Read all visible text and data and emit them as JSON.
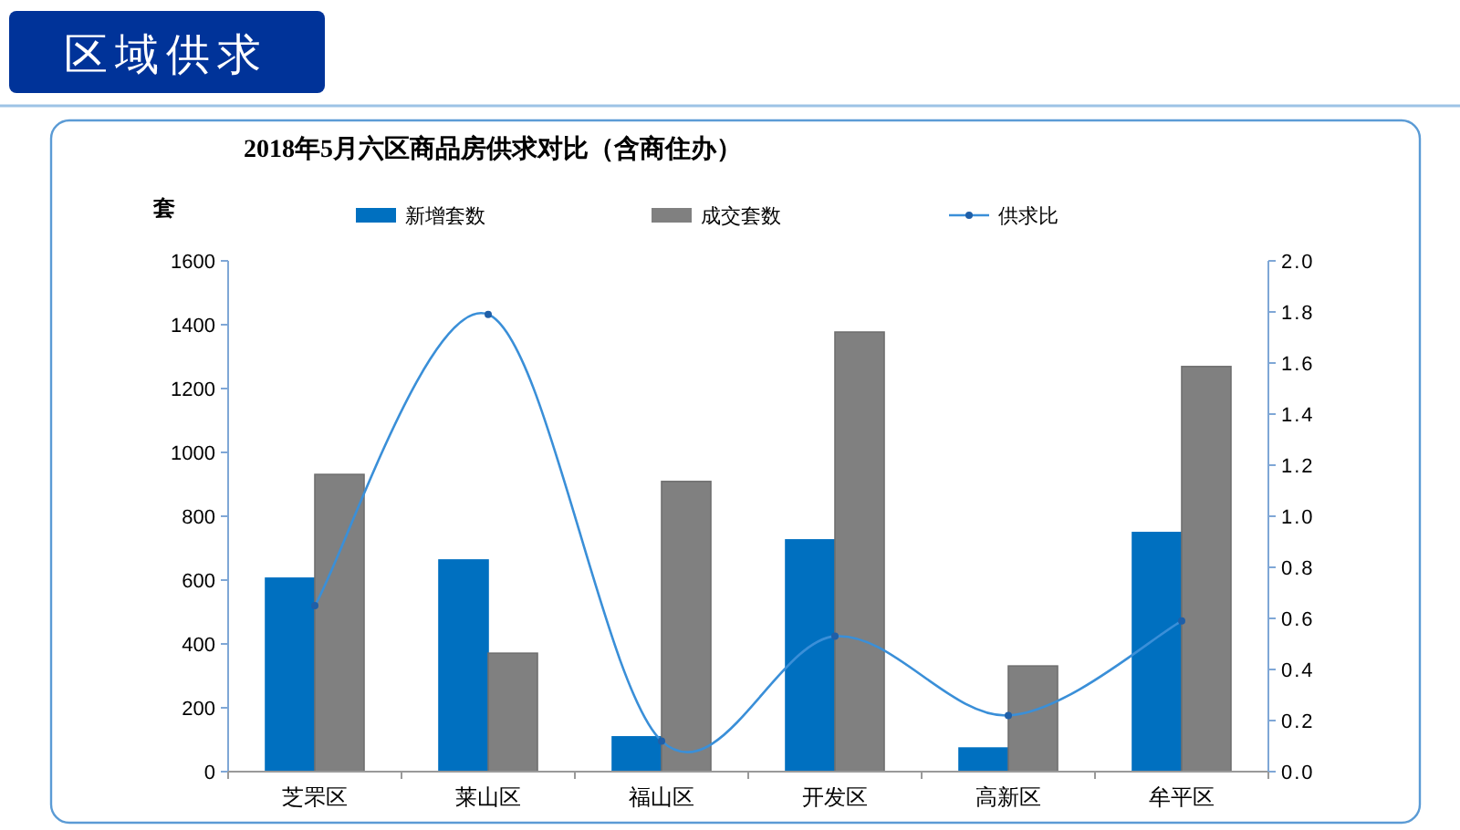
{
  "chart_data": {
    "type": "bar",
    "title": "2018年5月六区商品房供求对比（含商住办）",
    "annotations": [
      "区域供求"
    ],
    "ylabel": "套",
    "categories": [
      "芝罘区",
      "莱山区",
      "福山区",
      "开发区",
      "高新区",
      "牟平区"
    ],
    "series": [
      {
        "name": "新增套数",
        "color": "#0070c0",
        "values": [
          606,
          663,
          109,
          726,
          74,
          749
        ]
      },
      {
        "name": "成交套数",
        "color": "#808080",
        "values": [
          931,
          371,
          909,
          1377,
          331,
          1269
        ]
      },
      {
        "name": "供求比",
        "type": "line",
        "axis": "y2",
        "color": "#3a8fd8",
        "marker": "circle",
        "values": [
          0.65,
          1.79,
          0.12,
          0.53,
          0.22,
          0.59
        ]
      }
    ],
    "ylim": [
      0,
      1600
    ],
    "yticks": [
      0,
      200,
      400,
      600,
      800,
      1000,
      1200,
      1400,
      1600
    ],
    "y2lim": [
      0,
      2
    ],
    "y2ticks": [
      {
        "value": 0,
        "label": "0.0"
      },
      {
        "value": 0.2,
        "label": "0.2"
      },
      {
        "value": 0.4,
        "label": "0.4"
      },
      {
        "value": 0.6,
        "label": "0.6"
      },
      {
        "value": 0.8,
        "label": "0.8"
      },
      {
        "value": 1,
        "label": "1.0"
      },
      {
        "value": 1.2,
        "label": "1.2"
      },
      {
        "value": 1.4,
        "label": "1.4"
      },
      {
        "value": 1.6,
        "label": "1.6"
      },
      {
        "value": 1.8,
        "label": "1.8"
      },
      {
        "value": 2,
        "label": "2.0"
      }
    ],
    "grid": false,
    "legend": "top"
  }
}
